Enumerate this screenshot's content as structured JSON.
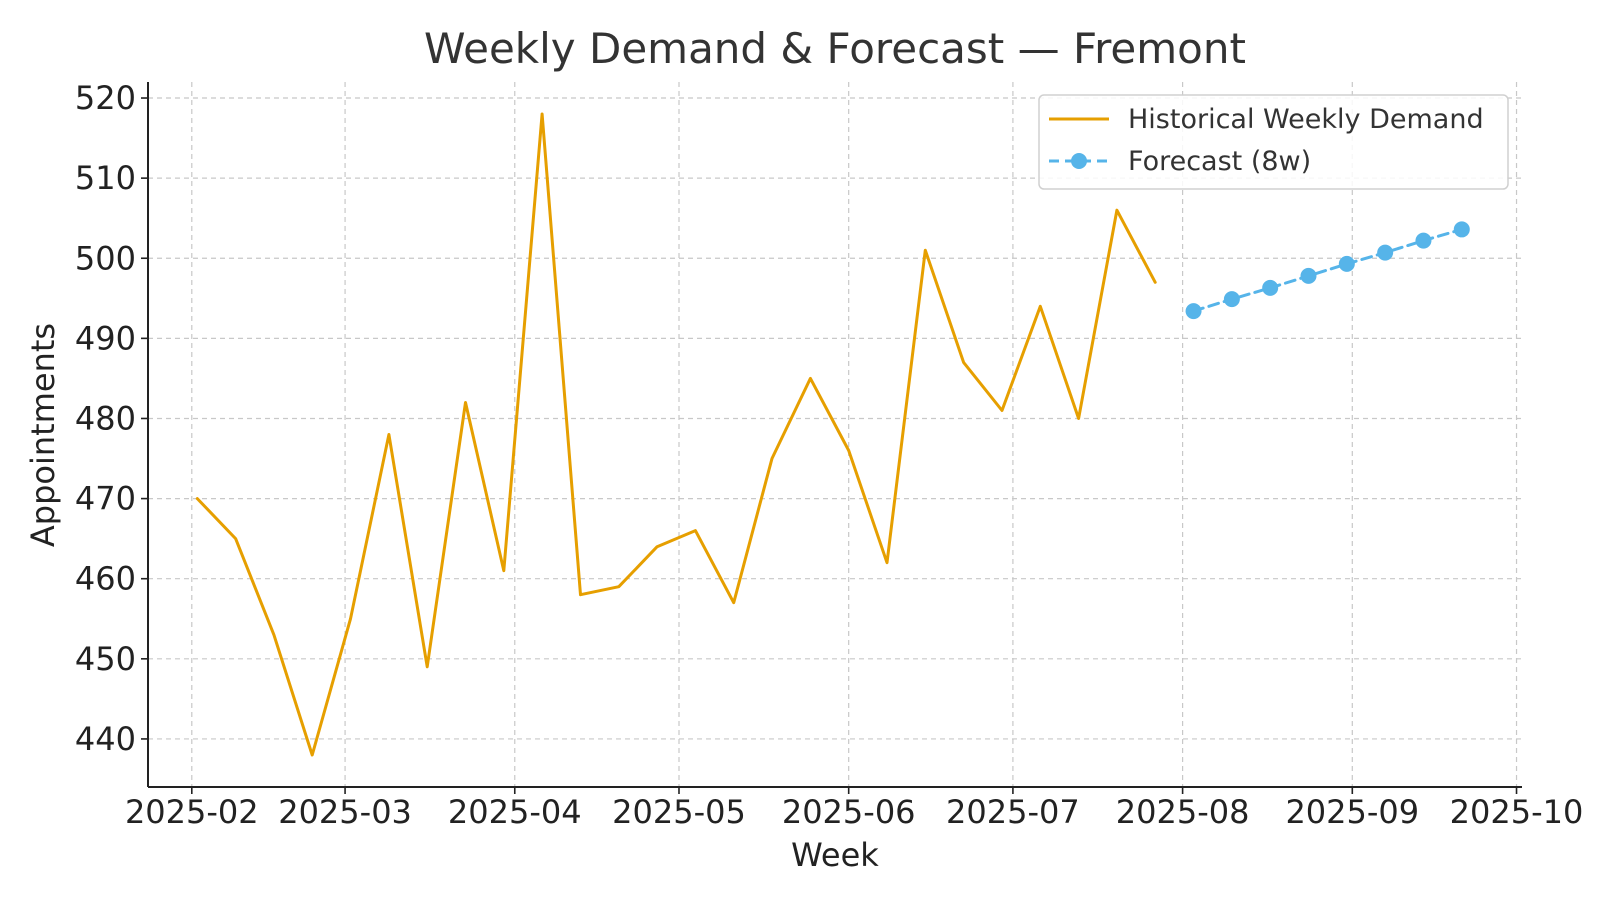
{
  "chart_data": {
    "type": "line",
    "title": "Weekly Demand & Forecast — Fremont",
    "xlabel": "Week",
    "ylabel": "Appointments",
    "ylim": [
      434,
      522
    ],
    "xlim": [
      "2025-01-24",
      "2025-10-02"
    ],
    "grid": true,
    "legend_position": "top-right",
    "x_ticks": [
      "2025-02",
      "2025-03",
      "2025-04",
      "2025-05",
      "2025-06",
      "2025-07",
      "2025-08",
      "2025-09",
      "2025-10"
    ],
    "y_ticks": [
      440,
      450,
      460,
      470,
      480,
      490,
      500,
      510,
      520
    ],
    "series": [
      {
        "name": "Historical Weekly Demand",
        "color": "#E69F00",
        "style": "solid",
        "marker": "none",
        "x": [
          "2025-02-02",
          "2025-02-09",
          "2025-02-16",
          "2025-02-23",
          "2025-03-02",
          "2025-03-09",
          "2025-03-16",
          "2025-03-23",
          "2025-03-30",
          "2025-04-06",
          "2025-04-13",
          "2025-04-20",
          "2025-04-27",
          "2025-05-04",
          "2025-05-11",
          "2025-05-18",
          "2025-05-25",
          "2025-06-01",
          "2025-06-08",
          "2025-06-15",
          "2025-06-22",
          "2025-06-29",
          "2025-07-06",
          "2025-07-13",
          "2025-07-20",
          "2025-07-27"
        ],
        "values": [
          470,
          465,
          453,
          438,
          455,
          478,
          449,
          482,
          461,
          518,
          458,
          459,
          464,
          466,
          457,
          475,
          485,
          476,
          462,
          501,
          487,
          481,
          494,
          480,
          506,
          497
        ]
      },
      {
        "name": "Forecast (8w)",
        "color": "#56B4E9",
        "style": "dashed",
        "marker": "circle",
        "x": [
          "2025-08-03",
          "2025-08-10",
          "2025-08-17",
          "2025-08-24",
          "2025-08-31",
          "2025-09-07",
          "2025-09-14",
          "2025-09-21"
        ],
        "values": [
          493.4,
          494.9,
          496.3,
          497.8,
          499.3,
          500.7,
          502.2,
          503.6
        ]
      }
    ]
  }
}
